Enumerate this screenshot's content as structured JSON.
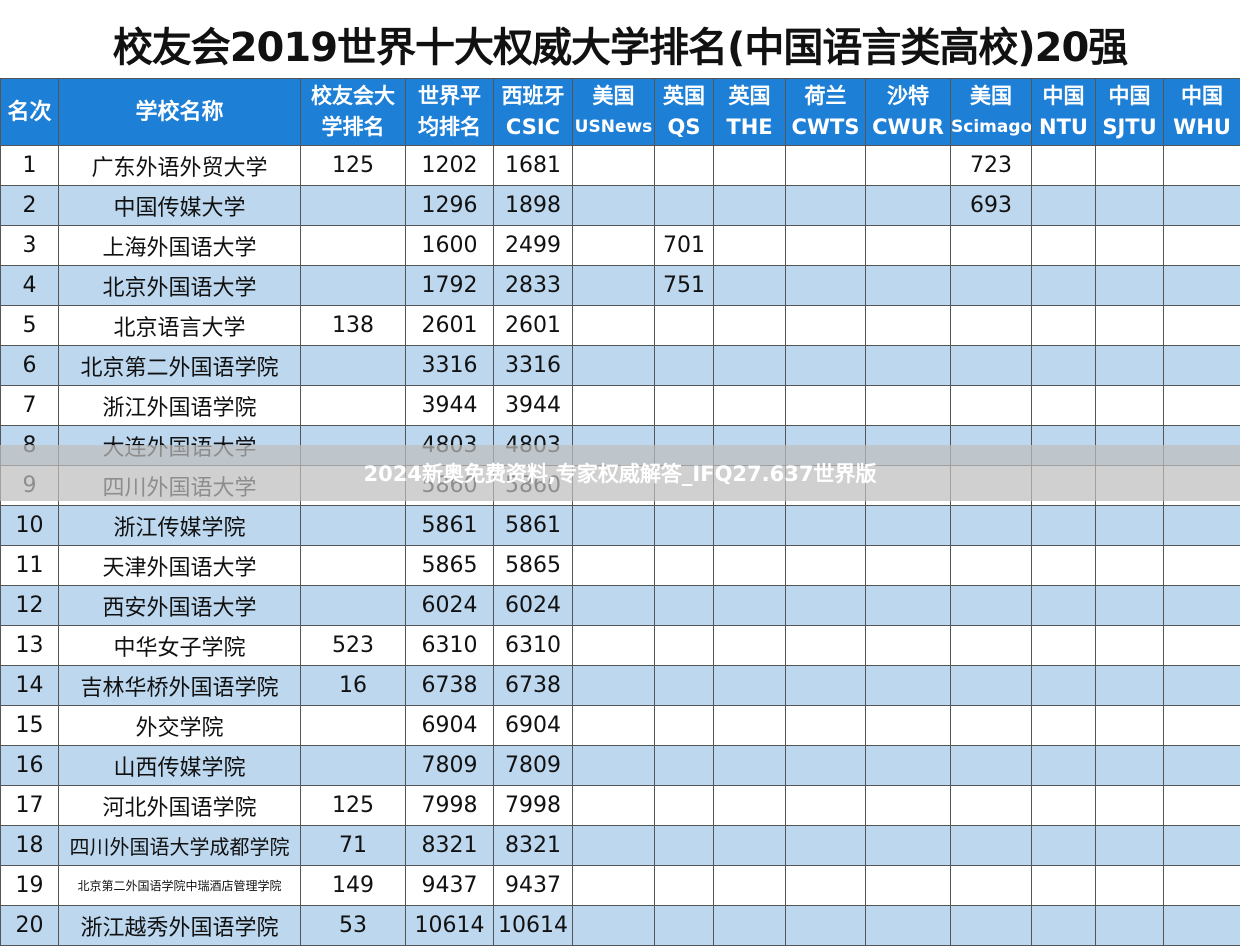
{
  "title": "校友会2019世界十大权威大学排名(中国语言类高校)20强",
  "watermark": "2024新奥免费资料,专家权威解答_IFQ27.637世界版",
  "table": {
    "header": [
      [
        "名次"
      ],
      [
        "学校名称"
      ],
      [
        "校友会大",
        "学排名"
      ],
      [
        "世界平",
        "均排名"
      ],
      [
        "西班牙",
        "CSIC"
      ],
      [
        "美国",
        "USNews"
      ],
      [
        "英国",
        "QS"
      ],
      [
        "英国",
        "THE"
      ],
      [
        "荷兰",
        "CWTS"
      ],
      [
        "沙特",
        "CWUR"
      ],
      [
        "美国",
        "Scimago"
      ],
      [
        "中国",
        "NTU"
      ],
      [
        "中国",
        "SJTU"
      ],
      [
        "中国",
        "WHU"
      ]
    ],
    "rows": [
      [
        1,
        "广东外语外贸大学",
        125,
        1202,
        1681,
        null,
        null,
        null,
        null,
        null,
        723,
        null,
        null,
        null
      ],
      [
        2,
        "中国传媒大学",
        null,
        1296,
        1898,
        null,
        null,
        null,
        null,
        null,
        693,
        null,
        null,
        null
      ],
      [
        3,
        "上海外国语大学",
        null,
        1600,
        2499,
        null,
        701,
        null,
        null,
        null,
        null,
        null,
        null,
        null
      ],
      [
        4,
        "北京外国语大学",
        null,
        1792,
        2833,
        null,
        751,
        null,
        null,
        null,
        null,
        null,
        null,
        null
      ],
      [
        5,
        "北京语言大学",
        138,
        2601,
        2601,
        null,
        null,
        null,
        null,
        null,
        null,
        null,
        null,
        null
      ],
      [
        6,
        "北京第二外国语学院",
        null,
        3316,
        3316,
        null,
        null,
        null,
        null,
        null,
        null,
        null,
        null,
        null
      ],
      [
        7,
        "浙江外国语学院",
        null,
        3944,
        3944,
        null,
        null,
        null,
        null,
        null,
        null,
        null,
        null,
        null
      ],
      [
        8,
        "大连外国语大学",
        null,
        4803,
        4803,
        null,
        null,
        null,
        null,
        null,
        null,
        null,
        null,
        null
      ],
      [
        9,
        "四川外国语大学",
        null,
        5860,
        5860,
        null,
        null,
        null,
        null,
        null,
        null,
        null,
        null,
        null
      ],
      [
        10,
        "浙江传媒学院",
        null,
        5861,
        5861,
        null,
        null,
        null,
        null,
        null,
        null,
        null,
        null,
        null
      ],
      [
        11,
        "天津外国语大学",
        null,
        5865,
        5865,
        null,
        null,
        null,
        null,
        null,
        null,
        null,
        null,
        null
      ],
      [
        12,
        "西安外国语大学",
        null,
        6024,
        6024,
        null,
        null,
        null,
        null,
        null,
        null,
        null,
        null,
        null
      ],
      [
        13,
        "中华女子学院",
        523,
        6310,
        6310,
        null,
        null,
        null,
        null,
        null,
        null,
        null,
        null,
        null
      ],
      [
        14,
        "吉林华桥外国语学院",
        16,
        6738,
        6738,
        null,
        null,
        null,
        null,
        null,
        null,
        null,
        null,
        null
      ],
      [
        15,
        "外交学院",
        null,
        6904,
        6904,
        null,
        null,
        null,
        null,
        null,
        null,
        null,
        null,
        null
      ],
      [
        16,
        "山西传媒学院",
        null,
        7809,
        7809,
        null,
        null,
        null,
        null,
        null,
        null,
        null,
        null,
        null
      ],
      [
        17,
        "河北外国语学院",
        125,
        7998,
        7998,
        null,
        null,
        null,
        null,
        null,
        null,
        null,
        null,
        null
      ],
      [
        18,
        "四川外国语大学成都学院",
        71,
        8321,
        8321,
        null,
        null,
        null,
        null,
        null,
        null,
        null,
        null,
        null
      ],
      [
        19,
        "北京第二外国语学院中瑞酒店管理学院",
        149,
        9437,
        9437,
        null,
        null,
        null,
        null,
        null,
        null,
        null,
        null,
        null
      ],
      [
        20,
        "浙江越秀外国语学院",
        53,
        10614,
        10614,
        null,
        null,
        null,
        null,
        null,
        null,
        null,
        null,
        null
      ]
    ]
  }
}
